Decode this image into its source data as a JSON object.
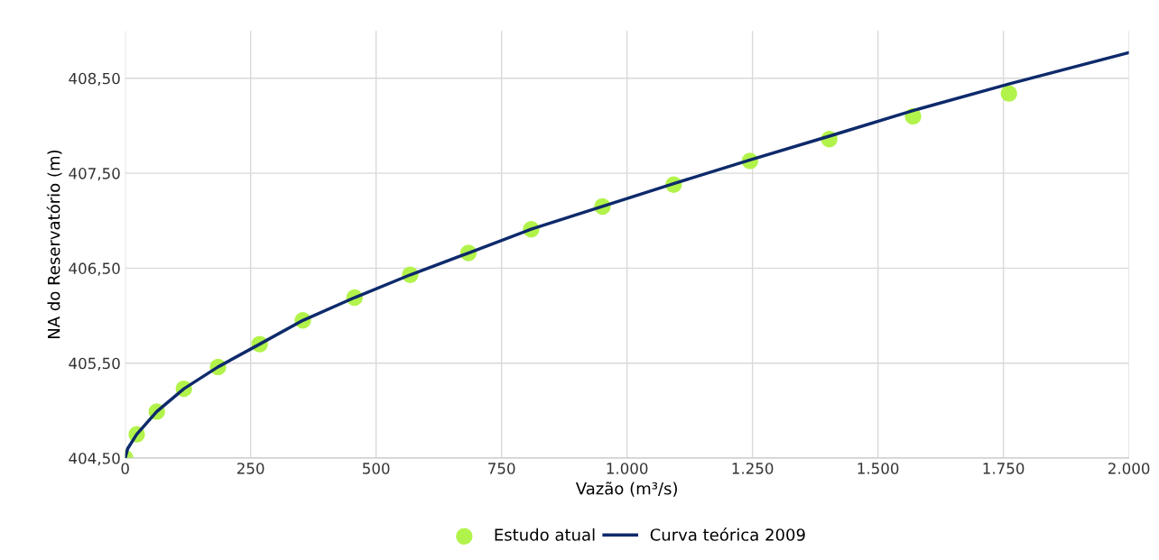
{
  "chart_data": {
    "type": "scatter",
    "xlabel": "Vazão (m³/s)",
    "ylabel": "NA do Reservatório (m)",
    "xlim": [
      0,
      2000
    ],
    "ylim": [
      404.5,
      409.0
    ],
    "xticks": [
      0,
      250,
      500,
      750,
      {
        "value": 1000,
        "label": "1.000"
      },
      {
        "value": 1250,
        "label": "1.250"
      },
      {
        "value": 1500,
        "label": "1.500"
      },
      {
        "value": 1750,
        "label": "1.750"
      },
      {
        "value": 2000,
        "label": "2.000"
      }
    ],
    "yticks": [
      {
        "value": 404.5,
        "label": "404,50"
      },
      {
        "value": 405.5,
        "label": "405,50"
      },
      {
        "value": 406.5,
        "label": "406,50"
      },
      {
        "value": 407.5,
        "label": "407,50"
      },
      {
        "value": 408.5,
        "label": "408,50"
      }
    ],
    "grid": true,
    "legend": "bottom",
    "series": [
      {
        "name": "Estudo atual",
        "marker": "circle",
        "color": "#b2f34b",
        "x": [
          0,
          23,
          63,
          117,
          185,
          268,
          354,
          457,
          568,
          684,
          809,
          951,
          1093,
          1245,
          1403,
          1570,
          1761
        ],
        "values": [
          404.5,
          404.75,
          404.99,
          405.23,
          405.46,
          405.7,
          405.95,
          406.19,
          406.43,
          406.66,
          406.91,
          407.15,
          407.38,
          407.63,
          407.86,
          408.1,
          408.34
        ]
      },
      {
        "name": "Curva teórica 2009",
        "type": "line",
        "marker": "none",
        "line_style": "solid",
        "color": "#0d2a6b",
        "x": [
          0,
          5,
          23,
          63,
          117,
          185,
          268,
          354,
          457,
          568,
          684,
          809,
          951,
          1093,
          1245,
          1403,
          1570,
          1761,
          2000
        ],
        "values": [
          404.5,
          404.6,
          404.75,
          404.99,
          405.23,
          405.46,
          405.7,
          405.95,
          406.19,
          406.43,
          406.66,
          406.91,
          407.15,
          407.39,
          407.64,
          407.89,
          408.16,
          408.44,
          408.77
        ]
      }
    ]
  }
}
